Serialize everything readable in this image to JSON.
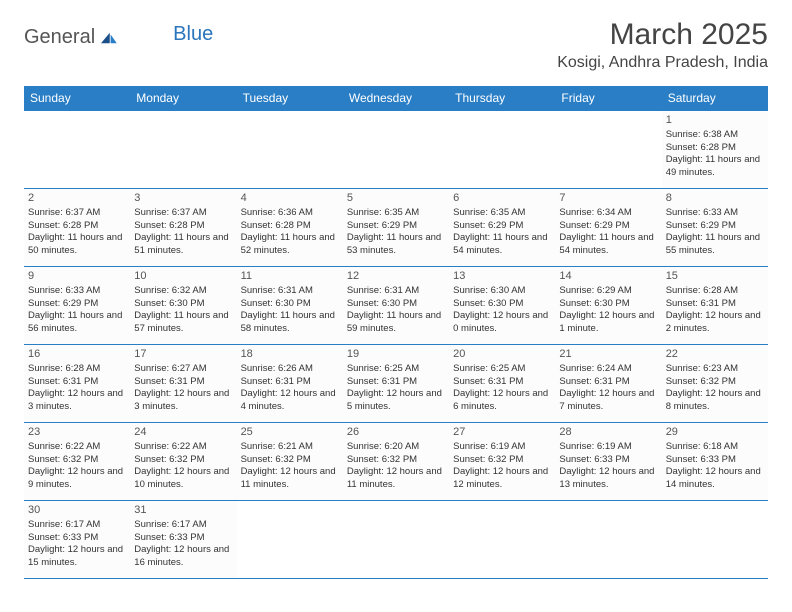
{
  "logo": {
    "text1": "General",
    "text2": "Blue"
  },
  "title": "March 2025",
  "location": "Kosigi, Andhra Pradesh, India",
  "colors": {
    "header_bg": "#2a7ec5",
    "header_fg": "#ffffff",
    "border": "#2a7ec5",
    "logo_blue": "#2a75bb"
  },
  "weekdays": [
    "Sunday",
    "Monday",
    "Tuesday",
    "Wednesday",
    "Thursday",
    "Friday",
    "Saturday"
  ],
  "weeks": [
    [
      null,
      null,
      null,
      null,
      null,
      null,
      {
        "n": "1",
        "sr": "Sunrise: 6:38 AM",
        "ss": "Sunset: 6:28 PM",
        "dl": "Daylight: 11 hours and 49 minutes."
      }
    ],
    [
      {
        "n": "2",
        "sr": "Sunrise: 6:37 AM",
        "ss": "Sunset: 6:28 PM",
        "dl": "Daylight: 11 hours and 50 minutes."
      },
      {
        "n": "3",
        "sr": "Sunrise: 6:37 AM",
        "ss": "Sunset: 6:28 PM",
        "dl": "Daylight: 11 hours and 51 minutes."
      },
      {
        "n": "4",
        "sr": "Sunrise: 6:36 AM",
        "ss": "Sunset: 6:28 PM",
        "dl": "Daylight: 11 hours and 52 minutes."
      },
      {
        "n": "5",
        "sr": "Sunrise: 6:35 AM",
        "ss": "Sunset: 6:29 PM",
        "dl": "Daylight: 11 hours and 53 minutes."
      },
      {
        "n": "6",
        "sr": "Sunrise: 6:35 AM",
        "ss": "Sunset: 6:29 PM",
        "dl": "Daylight: 11 hours and 54 minutes."
      },
      {
        "n": "7",
        "sr": "Sunrise: 6:34 AM",
        "ss": "Sunset: 6:29 PM",
        "dl": "Daylight: 11 hours and 54 minutes."
      },
      {
        "n": "8",
        "sr": "Sunrise: 6:33 AM",
        "ss": "Sunset: 6:29 PM",
        "dl": "Daylight: 11 hours and 55 minutes."
      }
    ],
    [
      {
        "n": "9",
        "sr": "Sunrise: 6:33 AM",
        "ss": "Sunset: 6:29 PM",
        "dl": "Daylight: 11 hours and 56 minutes."
      },
      {
        "n": "10",
        "sr": "Sunrise: 6:32 AM",
        "ss": "Sunset: 6:30 PM",
        "dl": "Daylight: 11 hours and 57 minutes."
      },
      {
        "n": "11",
        "sr": "Sunrise: 6:31 AM",
        "ss": "Sunset: 6:30 PM",
        "dl": "Daylight: 11 hours and 58 minutes."
      },
      {
        "n": "12",
        "sr": "Sunrise: 6:31 AM",
        "ss": "Sunset: 6:30 PM",
        "dl": "Daylight: 11 hours and 59 minutes."
      },
      {
        "n": "13",
        "sr": "Sunrise: 6:30 AM",
        "ss": "Sunset: 6:30 PM",
        "dl": "Daylight: 12 hours and 0 minutes."
      },
      {
        "n": "14",
        "sr": "Sunrise: 6:29 AM",
        "ss": "Sunset: 6:30 PM",
        "dl": "Daylight: 12 hours and 1 minute."
      },
      {
        "n": "15",
        "sr": "Sunrise: 6:28 AM",
        "ss": "Sunset: 6:31 PM",
        "dl": "Daylight: 12 hours and 2 minutes."
      }
    ],
    [
      {
        "n": "16",
        "sr": "Sunrise: 6:28 AM",
        "ss": "Sunset: 6:31 PM",
        "dl": "Daylight: 12 hours and 3 minutes."
      },
      {
        "n": "17",
        "sr": "Sunrise: 6:27 AM",
        "ss": "Sunset: 6:31 PM",
        "dl": "Daylight: 12 hours and 3 minutes."
      },
      {
        "n": "18",
        "sr": "Sunrise: 6:26 AM",
        "ss": "Sunset: 6:31 PM",
        "dl": "Daylight: 12 hours and 4 minutes."
      },
      {
        "n": "19",
        "sr": "Sunrise: 6:25 AM",
        "ss": "Sunset: 6:31 PM",
        "dl": "Daylight: 12 hours and 5 minutes."
      },
      {
        "n": "20",
        "sr": "Sunrise: 6:25 AM",
        "ss": "Sunset: 6:31 PM",
        "dl": "Daylight: 12 hours and 6 minutes."
      },
      {
        "n": "21",
        "sr": "Sunrise: 6:24 AM",
        "ss": "Sunset: 6:31 PM",
        "dl": "Daylight: 12 hours and 7 minutes."
      },
      {
        "n": "22",
        "sr": "Sunrise: 6:23 AM",
        "ss": "Sunset: 6:32 PM",
        "dl": "Daylight: 12 hours and 8 minutes."
      }
    ],
    [
      {
        "n": "23",
        "sr": "Sunrise: 6:22 AM",
        "ss": "Sunset: 6:32 PM",
        "dl": "Daylight: 12 hours and 9 minutes."
      },
      {
        "n": "24",
        "sr": "Sunrise: 6:22 AM",
        "ss": "Sunset: 6:32 PM",
        "dl": "Daylight: 12 hours and 10 minutes."
      },
      {
        "n": "25",
        "sr": "Sunrise: 6:21 AM",
        "ss": "Sunset: 6:32 PM",
        "dl": "Daylight: 12 hours and 11 minutes."
      },
      {
        "n": "26",
        "sr": "Sunrise: 6:20 AM",
        "ss": "Sunset: 6:32 PM",
        "dl": "Daylight: 12 hours and 11 minutes."
      },
      {
        "n": "27",
        "sr": "Sunrise: 6:19 AM",
        "ss": "Sunset: 6:32 PM",
        "dl": "Daylight: 12 hours and 12 minutes."
      },
      {
        "n": "28",
        "sr": "Sunrise: 6:19 AM",
        "ss": "Sunset: 6:33 PM",
        "dl": "Daylight: 12 hours and 13 minutes."
      },
      {
        "n": "29",
        "sr": "Sunrise: 6:18 AM",
        "ss": "Sunset: 6:33 PM",
        "dl": "Daylight: 12 hours and 14 minutes."
      }
    ],
    [
      {
        "n": "30",
        "sr": "Sunrise: 6:17 AM",
        "ss": "Sunset: 6:33 PM",
        "dl": "Daylight: 12 hours and 15 minutes."
      },
      {
        "n": "31",
        "sr": "Sunrise: 6:17 AM",
        "ss": "Sunset: 6:33 PM",
        "dl": "Daylight: 12 hours and 16 minutes."
      },
      null,
      null,
      null,
      null,
      null
    ]
  ]
}
